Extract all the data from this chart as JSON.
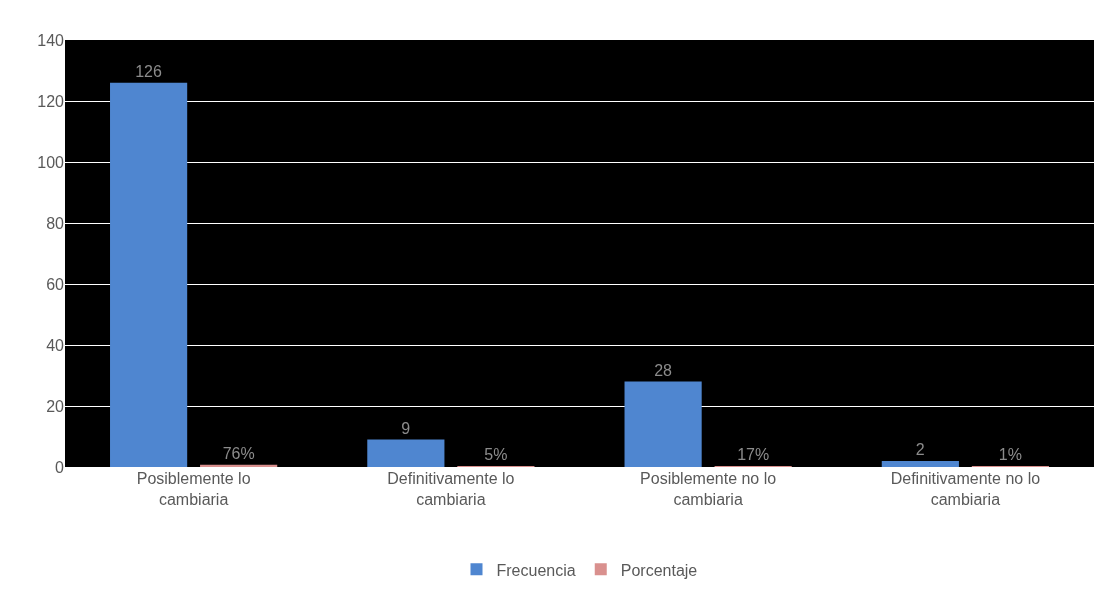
{
  "chart_data": {
    "type": "bar",
    "categories": [
      "Posiblemente lo cambiaria",
      "Definitivamente lo cambiaria",
      "Posiblemente no lo cambiaria",
      "Definitivamente no lo cambiaria"
    ],
    "series": [
      {
        "name": "Frecuencia",
        "color": "#4f86d0",
        "values": [
          126,
          9,
          28,
          2
        ],
        "value_labels": [
          "126",
          "9",
          "28",
          "2"
        ]
      },
      {
        "name": "Porcentaje",
        "color": "#d9908e",
        "values": [
          0.76,
          0.05,
          0.17,
          0.01
        ],
        "value_labels": [
          "76%",
          "5%",
          "17%",
          "1%"
        ]
      }
    ],
    "ylim": [
      0,
      140
    ],
    "yticks": [
      0,
      20,
      40,
      60,
      80,
      100,
      120,
      140
    ],
    "grid": "y",
    "legend": "bottom"
  }
}
